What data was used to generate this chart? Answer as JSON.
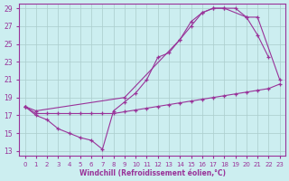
{
  "xlabel": "Windchill (Refroidissement éolien,°C)",
  "bg_color": "#cceef0",
  "grid_color": "#aacccc",
  "line_color": "#993399",
  "x_min": 0,
  "x_max": 23,
  "y_min": 13,
  "y_max": 29,
  "series": [
    {
      "x": [
        0,
        1,
        2,
        3,
        4,
        5,
        6,
        7,
        8,
        9,
        10,
        11,
        12,
        13,
        14,
        15,
        16,
        17,
        18,
        19,
        20,
        21,
        22
      ],
      "y": [
        18.0,
        17.0,
        16.5,
        15.5,
        15.0,
        14.5,
        14.2,
        13.2,
        17.5,
        18.5,
        19.5,
        21.0,
        23.5,
        24.0,
        25.5,
        27.0,
        28.5,
        29.0,
        29.0,
        29.0,
        28.0,
        26.0,
        23.5
      ]
    },
    {
      "x": [
        0,
        1,
        9,
        14,
        15,
        16,
        17,
        18,
        20,
        21,
        23
      ],
      "y": [
        18.0,
        17.5,
        19.0,
        25.5,
        27.5,
        28.5,
        29.0,
        29.0,
        28.0,
        28.0,
        21.0
      ]
    },
    {
      "x": [
        0,
        1,
        2,
        3,
        4,
        5,
        6,
        7,
        8,
        9,
        10,
        11,
        12,
        13,
        14,
        15,
        16,
        17,
        18,
        19,
        20,
        21,
        22,
        23
      ],
      "y": [
        18.0,
        17.2,
        17.2,
        17.2,
        17.2,
        17.2,
        17.2,
        17.2,
        17.2,
        17.4,
        17.6,
        17.8,
        18.0,
        18.2,
        18.4,
        18.6,
        18.8,
        19.0,
        19.2,
        19.4,
        19.6,
        19.8,
        20.0,
        20.5
      ]
    }
  ]
}
